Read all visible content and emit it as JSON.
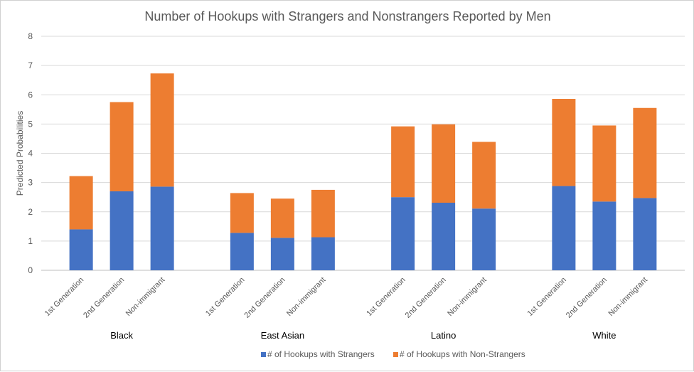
{
  "chart_data": {
    "type": "bar",
    "stacked": true,
    "title": "Number of Hookups with Strangers and Nonstrangers Reported by Men",
    "ylabel": "Predicted Probabilities",
    "xlabel": "",
    "ylim": [
      0,
      8
    ],
    "yticks": [
      "0",
      "1",
      "2",
      "3",
      "4",
      "5",
      "6",
      "7",
      "8"
    ],
    "grid": true,
    "legend_position": "bottom",
    "groups": [
      {
        "name": "Black",
        "categories": [
          "1st Generation",
          "2nd Generation",
          "Non-immigrant"
        ]
      },
      {
        "name": "East Asian",
        "categories": [
          "1st Generation",
          "2nd Generation",
          "Non-immigrant"
        ]
      },
      {
        "name": "Latino",
        "categories": [
          "1st Generation",
          "2nd Generation",
          "Non-immigrant"
        ]
      },
      {
        "name": "White",
        "categories": [
          "1st Generation",
          "2nd Generation",
          "Non-immigrant"
        ]
      }
    ],
    "series": [
      {
        "name": "# of Hookups with Strangers",
        "color": "#4472C4",
        "values": [
          1.4,
          2.7,
          2.86,
          1.28,
          1.11,
          1.13,
          2.5,
          2.31,
          2.11,
          2.88,
          2.35,
          2.47
        ]
      },
      {
        "name": "# of Hookups with Non-Strangers",
        "color": "#ED7D31",
        "values": [
          1.82,
          3.05,
          3.87,
          1.36,
          1.34,
          1.62,
          2.42,
          2.68,
          2.28,
          2.98,
          2.6,
          3.08
        ]
      }
    ]
  }
}
